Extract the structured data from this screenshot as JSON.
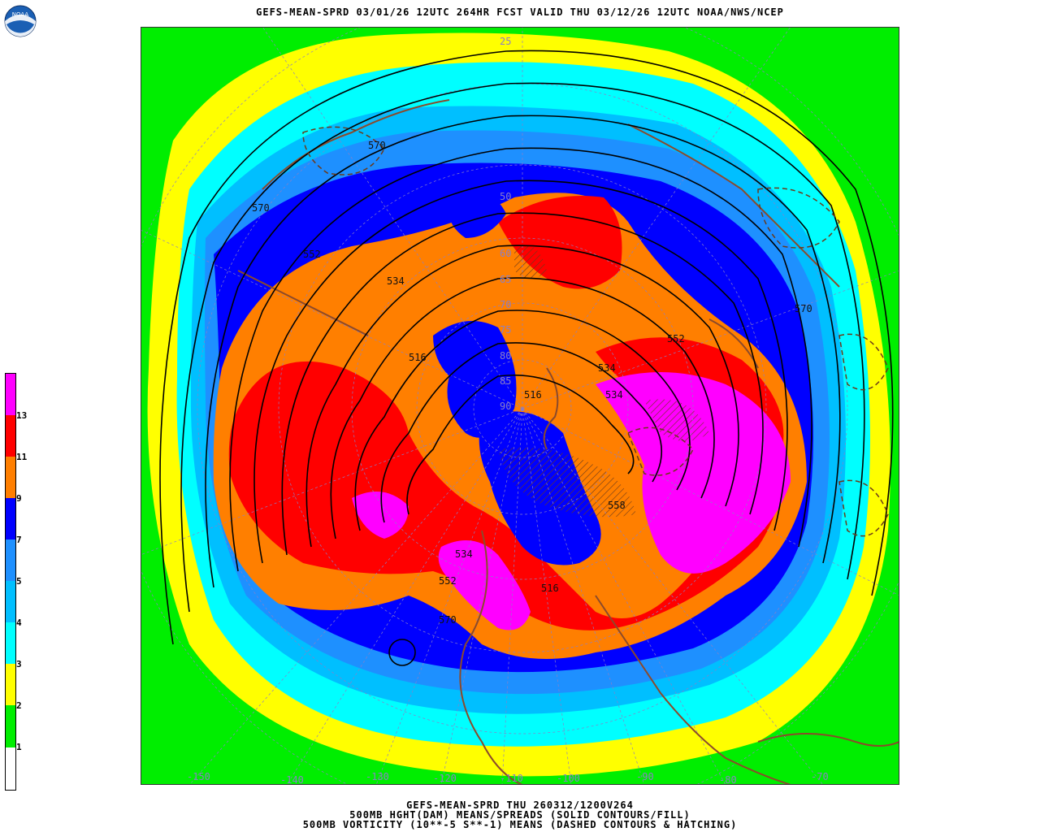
{
  "header": {
    "title": "GEFS-MEAN-SPRD 03/01/26 12UTC 264HR FCST VALID THU 03/12/26 12UTC NOAA/NWS/NCEP",
    "logo_text": "NOAA"
  },
  "footer": {
    "line1": "GEFS-MEAN-SPRD THU 260312/1200V264",
    "line2": "500MB HGHT(DAM) MEANS/SPREADS (SOLID CONTOURS/FILL)",
    "line3": "500MB VORTICITY (10**-5 S**-1) MEANS (DASHED CONTOURS & HATCHING)"
  },
  "colorbar": {
    "labels": [
      "13",
      "11",
      "9",
      "7",
      "5",
      "4",
      "3",
      "2",
      "1"
    ],
    "colors": [
      "#ff00ff",
      "#ff0000",
      "#ff7f00",
      "#0000ff",
      "#1e90ff",
      "#00bfff",
      "#00ffff",
      "#ffff00",
      "#00ee00",
      "#ffffff"
    ]
  },
  "map": {
    "latitude_labels": [
      "25",
      "50",
      "60",
      "65",
      "70",
      "75",
      "80",
      "85",
      "90"
    ],
    "longitude_labels": [
      "-150",
      "-140",
      "-130",
      "-120",
      "-110",
      "-100",
      "-90",
      "-80",
      "-70"
    ],
    "contour_labels": [
      "570",
      "570",
      "552",
      "534",
      "516",
      "516",
      "534",
      "552",
      "570",
      "534",
      "552",
      "570",
      "516",
      "558",
      "534"
    ]
  }
}
